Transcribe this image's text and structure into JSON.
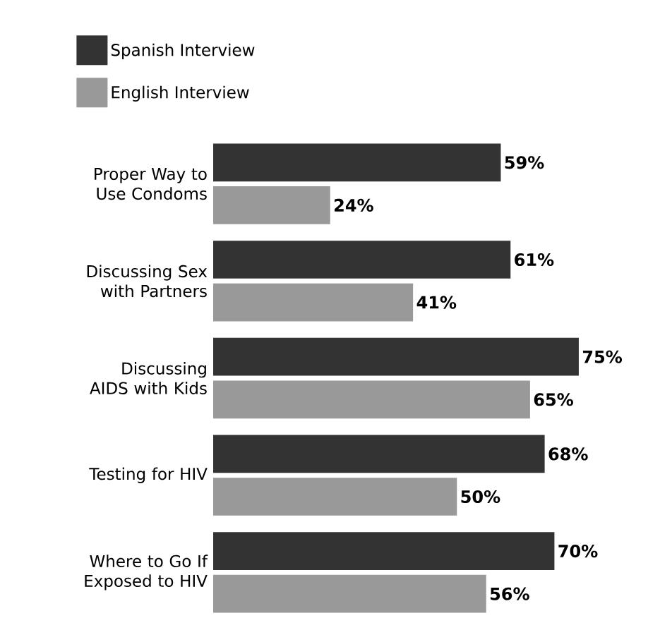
{
  "chart_data": {
    "type": "bar",
    "orientation": "horizontal",
    "legend": "top left",
    "categories": [
      "Proper Way to Use Condoms",
      "Discussing Sex with Partners",
      "Discussing AIDS with Kids",
      "Testing for HIV",
      "Where to Go If Exposed to HIV"
    ],
    "series": [
      {
        "name": "Spanish Interview",
        "color": "#333333",
        "values": [
          59,
          61,
          75,
          68,
          70
        ],
        "value_labels": [
          "59%",
          "61%",
          "75%",
          "68%",
          "70%"
        ]
      },
      {
        "name": "English Interview",
        "color": "#999999",
        "values": [
          24,
          41,
          65,
          50,
          56
        ],
        "value_labels": [
          "24%",
          "41%",
          "65%",
          "50%",
          "56%"
        ]
      }
    ]
  }
}
